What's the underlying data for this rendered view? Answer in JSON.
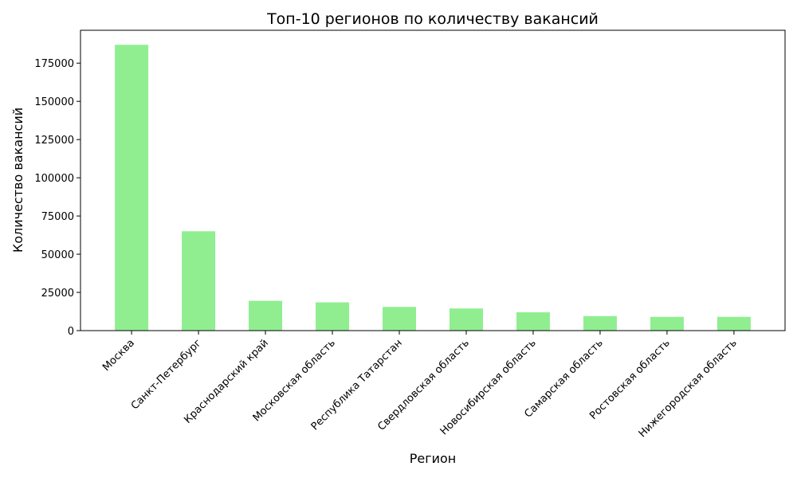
{
  "chart_data": {
    "type": "bar",
    "title": "Топ-10 регионов по количеству вакансий",
    "xlabel": "Регион",
    "ylabel": "Количество вакансий",
    "categories": [
      "Москва",
      "Санкт-Петербург",
      "Краснодарский край",
      "Московская область",
      "Республика Татарстан",
      "Свердловская область",
      "Новосибирская область",
      "Самарская область",
      "Ростовская область",
      "Нижегородская область"
    ],
    "values": [
      187000,
      65000,
      19500,
      18500,
      15500,
      14500,
      12000,
      9500,
      9000,
      9000
    ],
    "ylim": [
      0,
      196500
    ],
    "yticks": [
      0,
      25000,
      50000,
      75000,
      100000,
      125000,
      150000,
      175000
    ],
    "ytick_labels": [
      "0",
      "25000",
      "50000",
      "75000",
      "100000",
      "125000",
      "150000",
      "175000"
    ],
    "grid": false,
    "bar_color": "#90ee90"
  }
}
